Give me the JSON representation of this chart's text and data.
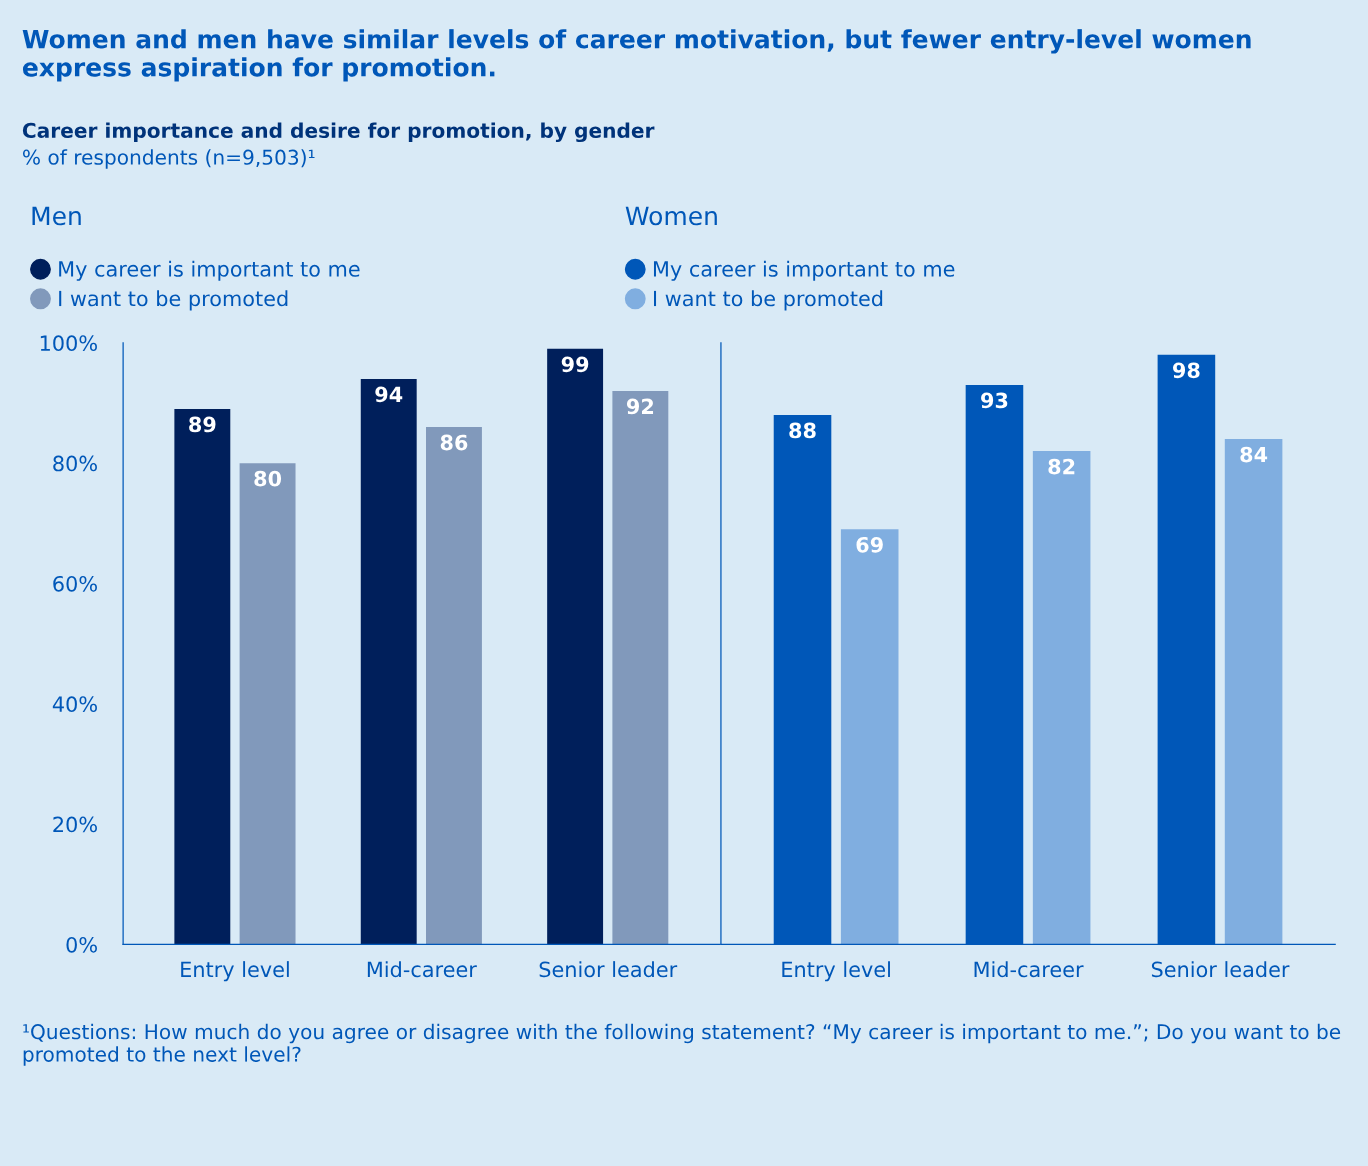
{
  "chart_data": [
    {
      "type": "bar",
      "title": "Women and men have similar levels of career motivation, but fewer entry-level women express aspiration for promotion.",
      "subtitle": "Career importance and desire for promotion, by gender",
      "ylabel": "% of respondents (n=9,503)¹",
      "legend_title": "Men",
      "categories": [
        "Entry level",
        "Mid-career",
        "Senior leader"
      ],
      "series": [
        {
          "name": "My career is important to me",
          "color": "#001f5b",
          "values": [
            89,
            94,
            99
          ]
        },
        {
          "name": "I want to be promoted",
          "color": "#8199bb",
          "values": [
            80,
            86,
            92
          ]
        }
      ],
      "ylim": [
        0,
        100
      ],
      "yticks": [
        {
          "value": 0,
          "label": "0%"
        },
        {
          "value": 20,
          "label": "20%"
        },
        {
          "value": 40,
          "label": "40%"
        },
        {
          "value": 60,
          "label": "60%"
        },
        {
          "value": 80,
          "label": "80%"
        },
        {
          "value": 100,
          "label": "100%"
        }
      ],
      "data_labels": true,
      "legend": "top left",
      "grid": false,
      "annotations": [
        "¹Questions: How much do you agree or disagree with the following statement? “My career is important to me.”; Do you want to be promoted to the next level?"
      ]
    },
    {
      "type": "bar",
      "legend_title": "Women",
      "categories": [
        "Entry level",
        "Mid-career",
        "Senior leader"
      ],
      "series": [
        {
          "name": "My career is important to me",
          "color": "#0057b8",
          "values": [
            88,
            93,
            98
          ]
        },
        {
          "name": "I want to be promoted",
          "color": "#80aee0",
          "values": [
            69,
            82,
            84
          ]
        }
      ],
      "ylim": [
        0,
        100
      ],
      "tick_labels": "x",
      "data_labels": true,
      "legend": "top left",
      "grid": false
    }
  ]
}
